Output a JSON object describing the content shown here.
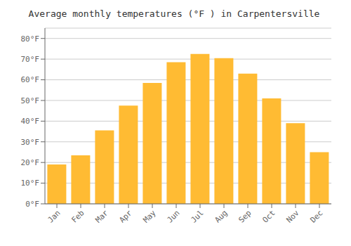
{
  "chart_data": {
    "type": "bar",
    "title": "Average monthly temperatures (°F ) in Carpentersville",
    "categories": [
      "Jan",
      "Feb",
      "Mar",
      "Apr",
      "May",
      "Jun",
      "Jul",
      "Aug",
      "Sep",
      "Oct",
      "Nov",
      "Dec"
    ],
    "values": [
      19,
      23.5,
      35.5,
      47.5,
      58.5,
      68.5,
      72.5,
      70.5,
      63,
      51,
      39,
      25
    ],
    "color": "#FFBB33",
    "ylim": [
      0,
      85
    ],
    "yticks": [
      {
        "value": 0,
        "label": "0°F"
      },
      {
        "value": 10,
        "label": "10°F"
      },
      {
        "value": 20,
        "label": "20°F"
      },
      {
        "value": 30,
        "label": "30°F"
      },
      {
        "value": 40,
        "label": "40°F"
      },
      {
        "value": 50,
        "label": "50°F"
      },
      {
        "value": 60,
        "label": "60°F"
      },
      {
        "value": 70,
        "label": "70°F"
      },
      {
        "value": 80,
        "label": "80°F"
      }
    ],
    "grid": true
  }
}
